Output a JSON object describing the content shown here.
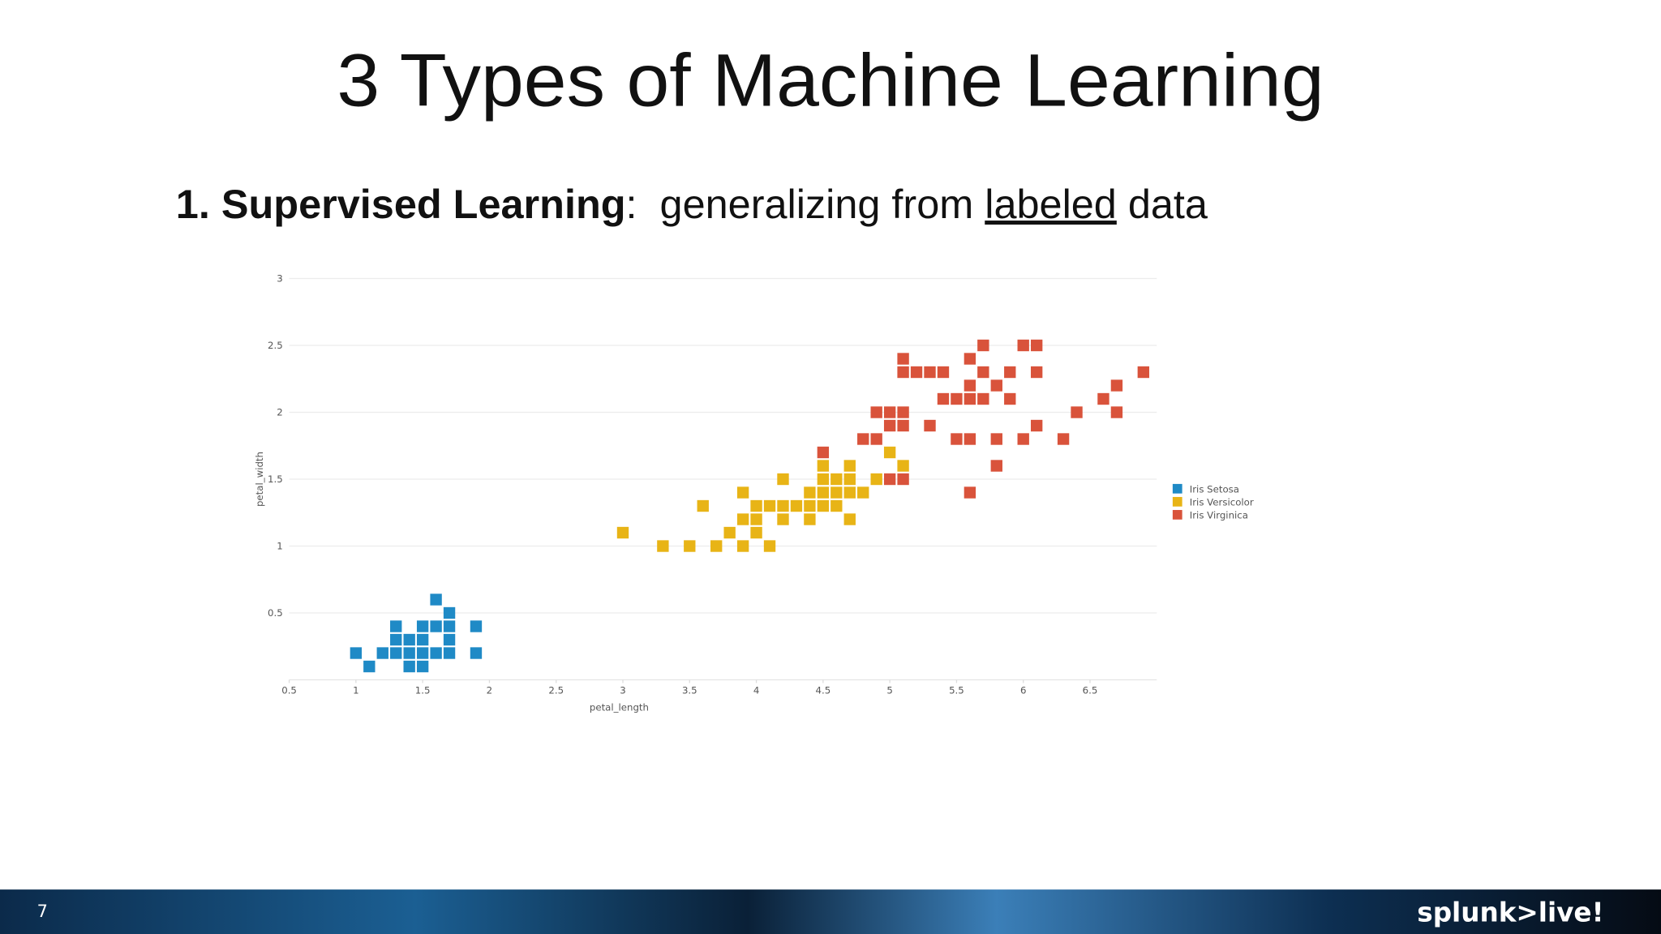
{
  "slide": {
    "title": "3 Types of Machine Learning",
    "subtitle": {
      "bold": "1. Supervised Learning",
      "text": ":  generalizing from ",
      "underlined": "labeled",
      "rest": " data"
    },
    "page_number": "7",
    "logo": "splunk>live!"
  },
  "chart_data": {
    "type": "scatter",
    "x_label": "petal_length",
    "y_label": "petal_width",
    "xlim": [
      0.5,
      7
    ],
    "ylim": [
      0,
      3
    ],
    "xticks": [
      0.5,
      1,
      1.5,
      2,
      2.5,
      3,
      3.5,
      4,
      4.5,
      5,
      5.5,
      6,
      6.5
    ],
    "yticks": [
      0.5,
      1,
      1.5,
      2,
      2.5,
      3
    ],
    "grid": true,
    "legend": "right",
    "series": [
      {
        "name": "Iris Setosa",
        "color": "#1f8ac6",
        "x": [
          1.0,
          1.1,
          1.2,
          1.3,
          1.3,
          1.3,
          1.4,
          1.4,
          1.4,
          1.5,
          1.5,
          1.5,
          1.5,
          1.6,
          1.6,
          1.6,
          1.7,
          1.7,
          1.7,
          1.7,
          1.9,
          1.9
        ],
        "values": [
          0.2,
          0.1,
          0.2,
          0.4,
          0.3,
          0.2,
          0.3,
          0.2,
          0.1,
          0.4,
          0.3,
          0.2,
          0.1,
          0.6,
          0.4,
          0.2,
          0.5,
          0.4,
          0.3,
          0.2,
          0.4,
          0.2
        ]
      },
      {
        "name": "Iris Versicolor",
        "color": "#e8b416",
        "x": [
          3.0,
          3.3,
          3.5,
          3.6,
          3.7,
          3.8,
          3.9,
          3.9,
          3.9,
          4.0,
          4.0,
          4.0,
          4.1,
          4.1,
          4.2,
          4.2,
          4.2,
          4.3,
          4.4,
          4.4,
          4.4,
          4.5,
          4.5,
          4.5,
          4.5,
          4.6,
          4.6,
          4.6,
          4.7,
          4.7,
          4.7,
          4.7,
          4.8,
          4.9,
          5.0,
          5.1
        ],
        "values": [
          1.1,
          1.0,
          1.0,
          1.3,
          1.0,
          1.1,
          1.4,
          1.2,
          1.0,
          1.3,
          1.2,
          1.1,
          1.0,
          1.3,
          1.5,
          1.3,
          1.2,
          1.3,
          1.4,
          1.3,
          1.2,
          1.6,
          1.5,
          1.4,
          1.3,
          1.5,
          1.4,
          1.3,
          1.6,
          1.5,
          1.4,
          1.2,
          1.4,
          1.5,
          1.7,
          1.6
        ]
      },
      {
        "name": "Iris Virginica",
        "color": "#d9533b",
        "x": [
          4.5,
          4.8,
          4.9,
          4.9,
          5.0,
          5.0,
          5.0,
          5.1,
          5.1,
          5.1,
          5.1,
          5.1,
          5.2,
          5.3,
          5.3,
          5.4,
          5.4,
          5.5,
          5.5,
          5.6,
          5.6,
          5.6,
          5.6,
          5.6,
          5.7,
          5.7,
          5.7,
          5.8,
          5.8,
          5.8,
          5.9,
          5.9,
          6.0,
          6.0,
          6.1,
          6.1,
          6.1,
          6.3,
          6.4,
          6.6,
          6.7,
          6.7,
          6.9
        ],
        "values": [
          1.7,
          1.8,
          1.8,
          2.0,
          2.0,
          1.9,
          1.5,
          1.5,
          2.0,
          1.9,
          2.4,
          2.3,
          2.3,
          2.3,
          1.9,
          2.3,
          2.1,
          2.1,
          1.8,
          1.8,
          1.4,
          2.1,
          2.2,
          2.4,
          2.5,
          2.3,
          2.1,
          2.2,
          1.8,
          1.6,
          2.3,
          2.1,
          2.5,
          1.8,
          2.5,
          2.3,
          1.9,
          1.8,
          2.0,
          2.1,
          2.2,
          2.0,
          2.3
        ]
      }
    ]
  }
}
